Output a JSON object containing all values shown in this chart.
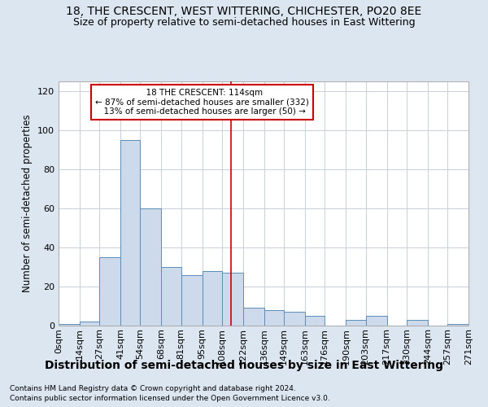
{
  "title": "18, THE CRESCENT, WEST WITTERING, CHICHESTER, PO20 8EE",
  "subtitle": "Size of property relative to semi-detached houses in East Wittering",
  "xlabel": "Distribution of semi-detached houses by size in East Wittering",
  "ylabel": "Number of semi-detached properties",
  "footnote1": "Contains HM Land Registry data © Crown copyright and database right 2024.",
  "footnote2": "Contains public sector information licensed under the Open Government Licence v3.0.",
  "property_size": 114,
  "property_label": "18 THE CRESCENT: 114sqm",
  "pct_smaller": 87,
  "count_smaller": 332,
  "pct_larger": 13,
  "count_larger": 50,
  "bin_edges": [
    0,
    14,
    27,
    41,
    54,
    68,
    81,
    95,
    108,
    122,
    136,
    149,
    163,
    176,
    190,
    203,
    217,
    230,
    244,
    257,
    271
  ],
  "bin_labels": [
    "0sqm",
    "14sqm",
    "27sqm",
    "41sqm",
    "54sqm",
    "68sqm",
    "81sqm",
    "95sqm",
    "108sqm",
    "122sqm",
    "136sqm",
    "149sqm",
    "163sqm",
    "176sqm",
    "190sqm",
    "203sqm",
    "217sqm",
    "230sqm",
    "244sqm",
    "257sqm",
    "271sqm"
  ],
  "counts": [
    1,
    2,
    35,
    95,
    60,
    30,
    26,
    28,
    27,
    9,
    8,
    7,
    5,
    0,
    3,
    5,
    0,
    3,
    0,
    1
  ],
  "bar_facecolor": "#ccdaeb",
  "bar_edgecolor": "#5b8db8",
  "vline_color": "#cc0000",
  "vline_x": 114,
  "annotation_box_color": "#cc0000",
  "ylim": [
    0,
    125
  ],
  "yticks": [
    0,
    20,
    40,
    60,
    80,
    100,
    120
  ],
  "background_color": "#dce6f0",
  "axes_bg_color": "#ffffff",
  "grid_color": "#c8d0da",
  "title_fontsize": 10,
  "subtitle_fontsize": 9,
  "xlabel_fontsize": 10,
  "ylabel_fontsize": 8.5,
  "tick_fontsize": 8
}
